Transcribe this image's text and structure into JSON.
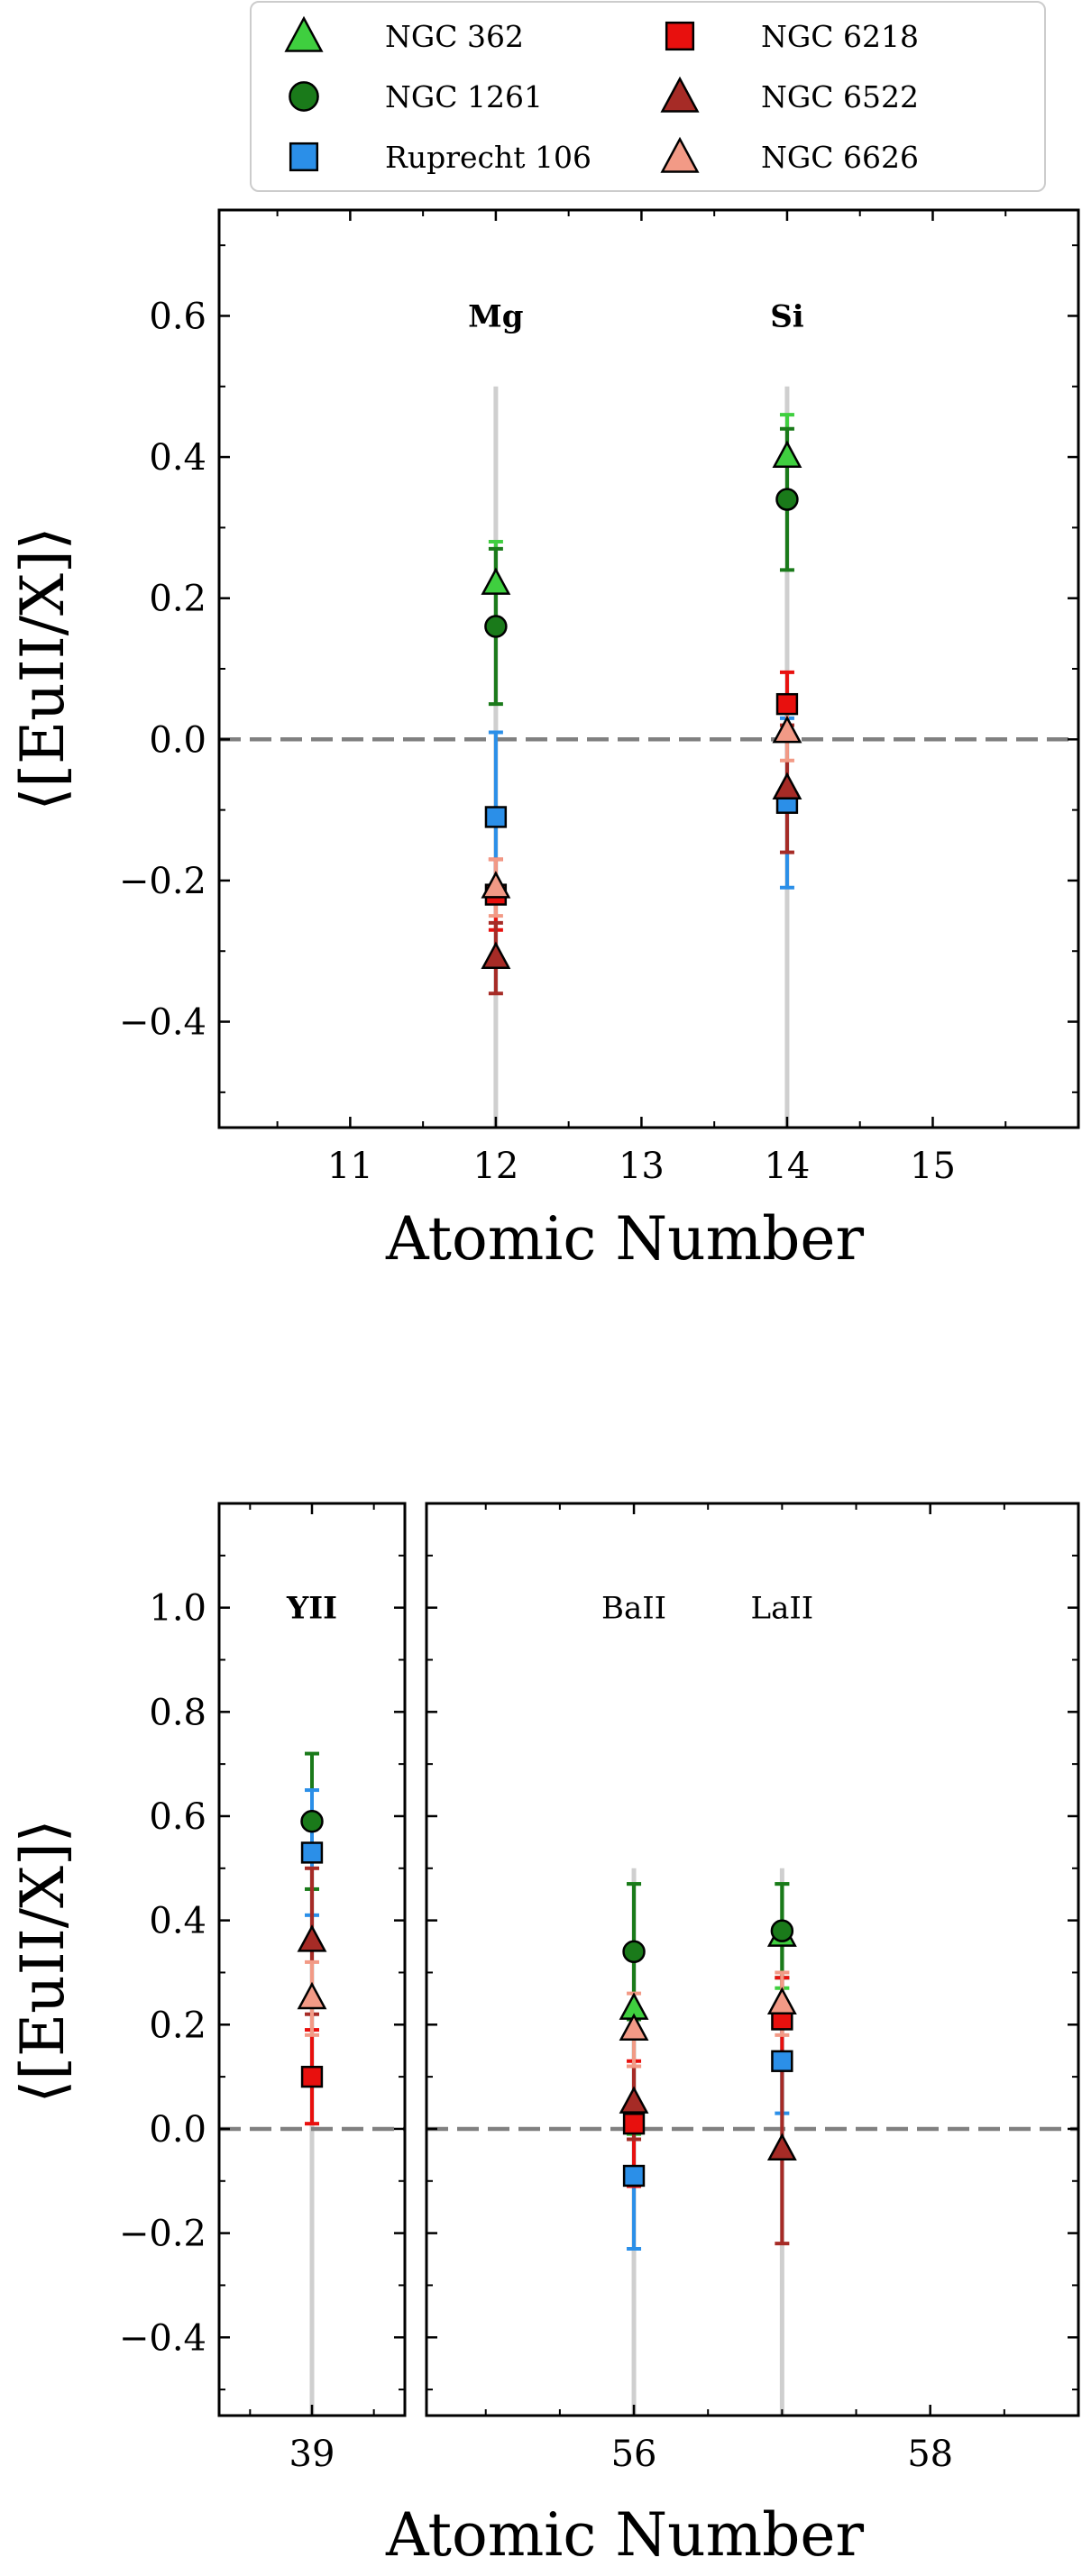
{
  "legend": {
    "entries": [
      {
        "name": "NGC 362",
        "marker": "triangle",
        "color": "#3fcf3f"
      },
      {
        "name": "NGC 1261",
        "marker": "circle",
        "color": "#1a7a1a"
      },
      {
        "name": "Ruprecht 106",
        "marker": "square",
        "color": "#2b8fe8"
      },
      {
        "name": "NGC 6218",
        "marker": "square",
        "color": "#e8100e"
      },
      {
        "name": "NGC 6522",
        "marker": "triangle",
        "color": "#a62b26"
      },
      {
        "name": "NGC 6626",
        "marker": "triangle",
        "color": "#f29a86"
      }
    ]
  },
  "chart_data": [
    {
      "type": "scatter",
      "xlabel": "Atomic Number",
      "ylabel": "⟨[EuII/X]⟩",
      "xlim": [
        10.1,
        16.0
      ],
      "ylim": [
        -0.55,
        0.75
      ],
      "xticks": [
        11,
        12,
        13,
        14,
        15
      ],
      "yticks": [
        -0.4,
        -0.2,
        0.0,
        0.2,
        0.4,
        0.6
      ],
      "ytick_labels": [
        "−0.4",
        "−0.2",
        "0.0",
        "0.2",
        "0.4",
        "0.6"
      ],
      "reference_line": 0.0,
      "elements": [
        {
          "label": "Mg",
          "x": 12,
          "bold": true
        },
        {
          "label": "Si",
          "x": 14,
          "bold": true
        }
      ],
      "series": [
        {
          "name": "NGC 362",
          "points": [
            {
              "x": 12,
              "y": 0.22,
              "err": 0.06
            },
            {
              "x": 14,
              "y": 0.4,
              "err": 0.06
            }
          ]
        },
        {
          "name": "NGC 1261",
          "points": [
            {
              "x": 12,
              "y": 0.16,
              "err": 0.11
            },
            {
              "x": 14,
              "y": 0.34,
              "err": 0.1
            }
          ]
        },
        {
          "name": "Ruprecht 106",
          "points": [
            {
              "x": 12,
              "y": -0.11,
              "err": 0.12
            },
            {
              "x": 14,
              "y": -0.09,
              "err": 0.12
            }
          ]
        },
        {
          "name": "NGC 6218",
          "points": [
            {
              "x": 12,
              "y": -0.22,
              "err": 0.05
            },
            {
              "x": 14,
              "y": 0.05,
              "err": 0.045
            }
          ]
        },
        {
          "name": "NGC 6522",
          "points": [
            {
              "x": 12,
              "y": -0.31,
              "err": 0.05
            },
            {
              "x": 14,
              "y": -0.07,
              "err": 0.09
            }
          ]
        },
        {
          "name": "NGC 6626",
          "points": [
            {
              "x": 12,
              "y": -0.21,
              "err": 0.04
            },
            {
              "x": 14,
              "y": 0.01,
              "err": 0.04
            }
          ]
        }
      ]
    },
    {
      "type": "scatter",
      "xlabel": "Atomic Number",
      "ylabel": "⟨[EuII/X]⟩",
      "ylim": [
        -0.55,
        1.2
      ],
      "yticks": [
        -0.4,
        -0.2,
        0.0,
        0.2,
        0.4,
        0.6,
        0.8,
        1.0
      ],
      "ytick_labels": [
        "−0.4",
        "−0.2",
        "0.0",
        "0.2",
        "0.4",
        "0.6",
        "0.8",
        "1.0"
      ],
      "reference_line": 0.0,
      "panels": [
        {
          "xlim": [
            38.25,
            39.75
          ],
          "xticks": [
            39
          ]
        },
        {
          "xlim": [
            54.6,
            59.0
          ],
          "xticks": [
            56,
            58
          ]
        }
      ],
      "elements": [
        {
          "label": "YII",
          "x": 39,
          "bold": true
        },
        {
          "label": "BaII",
          "x": 56,
          "bold": false
        },
        {
          "label": "LaII",
          "x": 57,
          "bold": false
        }
      ],
      "series": [
        {
          "name": "NGC 362",
          "points": [
            {
              "x": 56,
              "y": 0.23,
              "err": 0.24
            },
            {
              "x": 57,
              "y": 0.37,
              "err": 0.1
            }
          ]
        },
        {
          "name": "NGC 1261",
          "points": [
            {
              "x": 39,
              "y": 0.59,
              "err": 0.13
            },
            {
              "x": 56,
              "y": 0.34,
              "err": 0.13
            },
            {
              "x": 57,
              "y": 0.38,
              "err": 0.09
            }
          ]
        },
        {
          "name": "Ruprecht 106",
          "points": [
            {
              "x": 39,
              "y": 0.53,
              "err": 0.12
            },
            {
              "x": 56,
              "y": -0.09,
              "err": 0.14
            },
            {
              "x": 57,
              "y": 0.13,
              "err": 0.1
            }
          ]
        },
        {
          "name": "NGC 6218",
          "points": [
            {
              "x": 39,
              "y": 0.1,
              "err": 0.09
            },
            {
              "x": 56,
              "y": 0.01,
              "err": 0.12
            },
            {
              "x": 57,
              "y": 0.21,
              "err": 0.08
            }
          ]
        },
        {
          "name": "NGC 6522",
          "points": [
            {
              "x": 39,
              "y": 0.36,
              "err": 0.14
            },
            {
              "x": 56,
              "y": 0.05,
              "err": 0.07
            },
            {
              "x": 57,
              "y": -0.04,
              "err": 0.18
            }
          ]
        },
        {
          "name": "NGC 6626",
          "points": [
            {
              "x": 39,
              "y": 0.25,
              "err": 0.07
            },
            {
              "x": 56,
              "y": 0.19,
              "err": 0.07
            },
            {
              "x": 57,
              "y": 0.24,
              "err": 0.06
            }
          ]
        }
      ]
    }
  ]
}
